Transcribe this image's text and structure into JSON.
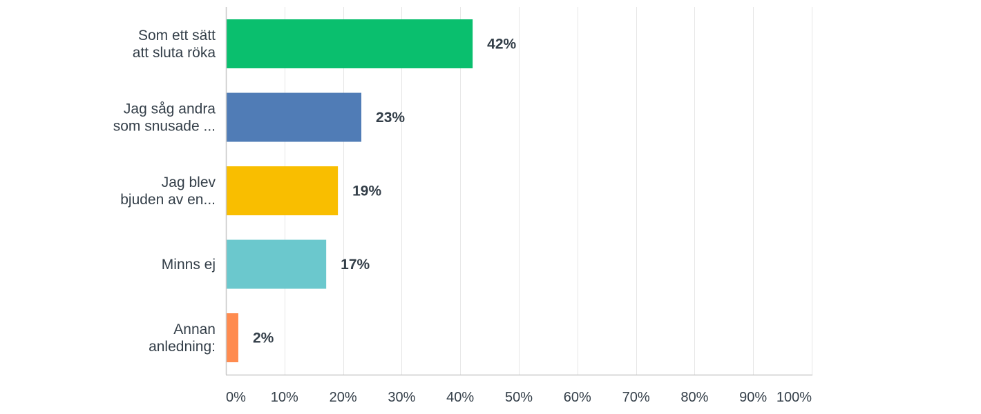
{
  "chart_data": {
    "type": "bar",
    "orientation": "horizontal",
    "categories": [
      [
        "Som ett sätt",
        "att sluta röka"
      ],
      [
        "Jag såg andra",
        "som snusade ..."
      ],
      [
        "Jag blev",
        "bjuden av en..."
      ],
      [
        "Minns ej"
      ],
      [
        "Annan",
        "anledning:"
      ]
    ],
    "values": [
      42,
      23,
      19,
      17,
      2
    ],
    "value_labels": [
      "42%",
      "23%",
      "19%",
      "17%",
      "2%"
    ],
    "colors": [
      "#0abf6e",
      "#507cb6",
      "#f9be00",
      "#6bc8cd",
      "#ff8b4f"
    ],
    "xlim": [
      0,
      100
    ],
    "xticks": [
      0,
      10,
      20,
      30,
      40,
      50,
      60,
      70,
      80,
      90,
      100
    ],
    "xtick_labels": [
      "0%",
      "10%",
      "20%",
      "30%",
      "40%",
      "50%",
      "60%",
      "70%",
      "80%",
      "90%",
      "100%"
    ],
    "grid": true,
    "title": "",
    "xlabel": "",
    "ylabel": ""
  }
}
